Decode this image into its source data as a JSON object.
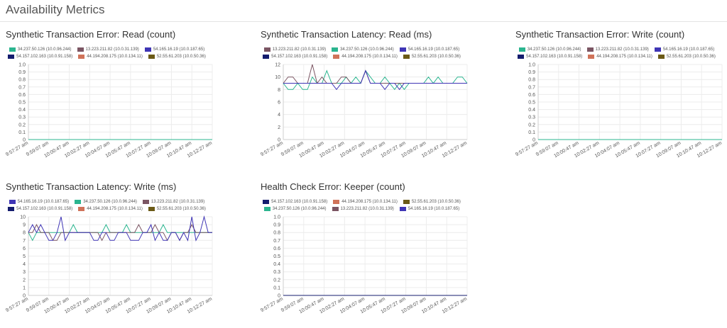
{
  "page": {
    "title": "Availability Metrics"
  },
  "colors": {
    "s1": "#2bb58f",
    "s2": "#7b5563",
    "s3": "#3f35b5",
    "s4": "#141c6e",
    "s5": "#d0735a",
    "s6": "#6b5a16"
  },
  "x_ticks": [
    "9:57:27 am",
    "9:59:07 am",
    "10:00:47 am",
    "10:02:27 am",
    "10:04:07 am",
    "10:05:47 am",
    "10:07:27 am",
    "10:09:07 am",
    "10:10:47 am",
    "10:12:27 am"
  ],
  "charts": [
    {
      "title": "Synthetic Transaction Error: Read (count)",
      "legend": [
        [
          {
            "label": "34.237.50.126 (10.0.96.244)",
            "color": "s1"
          },
          {
            "label": "13.223.211.82 (10.0.31.139)",
            "color": "s2"
          },
          {
            "label": "54.165.16.19 (10.0.187.65)",
            "color": "s3"
          }
        ],
        [
          {
            "label": "54.157.102.163 (10.0.91.158)",
            "color": "s4"
          },
          {
            "label": "44.194.208.175 (10.0.134.11)",
            "color": "s5"
          },
          {
            "label": "52.55.61.203 (10.0.50.36)",
            "color": "s6"
          }
        ]
      ],
      "y_ticks": [
        "1.0",
        "0.9",
        "0.8",
        "0.7",
        "0.6",
        "0.5",
        "0.4",
        "0.3",
        "0.2",
        "0.1",
        "0"
      ],
      "ylim": [
        0,
        1
      ],
      "series": [
        {
          "color": "s1",
          "values": [
            0,
            0,
            0,
            0,
            0,
            0,
            0,
            0,
            0,
            0,
            0,
            0,
            0,
            0,
            0,
            0,
            0,
            0,
            0,
            0,
            0,
            0,
            0,
            0,
            0,
            0,
            0,
            0,
            0,
            0,
            0,
            0,
            0,
            0,
            0,
            0,
            0,
            0,
            0,
            0,
            0,
            0,
            0,
            0,
            0,
            0
          ]
        }
      ]
    },
    {
      "title": "Synthetic Transaction Latency: Read (ms)",
      "legend": [
        [
          {
            "label": "13.223.211.82 (10.0.31.139)",
            "color": "s2"
          },
          {
            "label": "34.237.50.126 (10.0.96.244)",
            "color": "s1"
          },
          {
            "label": "54.165.16.19 (10.0.187.65)",
            "color": "s3"
          }
        ],
        [
          {
            "label": "54.157.102.163 (10.0.91.158)",
            "color": "s4"
          },
          {
            "label": "44.194.208.175 (10.0.134.11)",
            "color": "s5"
          },
          {
            "label": "52.55.61.203 (10.0.50.36)",
            "color": "s6"
          }
        ]
      ],
      "y_ticks": [
        "12",
        "10",
        "8",
        "6",
        "4",
        "2",
        "0"
      ],
      "ylim": [
        0,
        12
      ],
      "series": [
        {
          "color": "s1",
          "values": [
            9,
            8,
            8,
            9,
            8,
            8,
            10,
            9,
            9,
            11,
            9,
            9,
            9,
            10,
            9,
            10,
            9,
            11,
            10,
            9,
            9,
            10,
            9,
            8,
            9,
            8,
            9,
            9,
            9,
            9,
            10,
            9,
            10,
            9,
            9,
            9,
            10,
            10,
            9
          ]
        },
        {
          "color": "s2",
          "values": [
            9,
            10,
            10,
            9,
            9,
            9,
            12,
            9,
            10,
            9,
            9,
            9,
            10,
            10,
            9,
            9,
            9,
            11,
            9,
            9,
            9,
            9,
            9,
            9,
            9,
            9,
            9,
            9,
            9,
            9,
            9,
            9,
            9,
            9,
            9,
            9,
            9,
            9,
            9
          ]
        },
        {
          "color": "s3",
          "values": [
            9,
            9,
            9,
            9,
            9,
            9,
            9,
            9,
            9,
            9,
            9,
            8,
            9,
            9,
            9,
            9,
            9,
            11,
            9,
            9,
            9,
            8,
            9,
            9,
            8,
            9,
            9,
            9,
            9,
            9,
            9,
            9,
            9,
            9,
            9,
            9,
            9,
            9,
            9
          ]
        }
      ]
    },
    {
      "title": "Synthetic Transaction Error: Write (count)",
      "legend": [
        [
          {
            "label": "34.237.50.126 (10.0.96.244)",
            "color": "s1"
          },
          {
            "label": "13.223.211.82 (10.0.31.139)",
            "color": "s2"
          },
          {
            "label": "54.165.16.19 (10.0.187.65)",
            "color": "s3"
          }
        ],
        [
          {
            "label": "54.157.102.163 (10.0.91.158)",
            "color": "s4"
          },
          {
            "label": "44.194.208.175 (10.0.134.11)",
            "color": "s5"
          },
          {
            "label": "52.55.61.203 (10.0.50.36)",
            "color": "s6"
          }
        ]
      ],
      "y_ticks": [
        "1.0",
        "0.9",
        "0.8",
        "0.7",
        "0.6",
        "0.5",
        "0.4",
        "0.3",
        "0.2",
        "0.1",
        "0"
      ],
      "ylim": [
        0,
        1
      ],
      "series": [
        {
          "color": "s1",
          "values": [
            0,
            0,
            0,
            0,
            0,
            0,
            0,
            0,
            0,
            0,
            0,
            0,
            0,
            0,
            0,
            0,
            0,
            0,
            0,
            0,
            0,
            0,
            0,
            0,
            0,
            0,
            0,
            0,
            0,
            0,
            0,
            0,
            0,
            0,
            0,
            0,
            0,
            0,
            0,
            0,
            0,
            0,
            0,
            0,
            0,
            0
          ]
        }
      ]
    },
    {
      "title": "Synthetic Transaction Latency: Write (ms)",
      "legend": [
        [
          {
            "label": "54.165.16.19 (10.0.187.65)",
            "color": "s3"
          },
          {
            "label": "34.237.50.126 (10.0.96.244)",
            "color": "s1"
          },
          {
            "label": "13.223.211.82 (10.0.31.139)",
            "color": "s2"
          }
        ],
        [
          {
            "label": "54.157.102.163 (10.0.91.158)",
            "color": "s4"
          },
          {
            "label": "44.194.208.175 (10.0.134.11)",
            "color": "s5"
          },
          {
            "label": "52.55.61.203 (10.0.50.36)",
            "color": "s6"
          }
        ]
      ],
      "y_ticks": [
        "10",
        "9",
        "8",
        "7",
        "6",
        "5",
        "4",
        "3",
        "2",
        "1",
        "0"
      ],
      "ylim": [
        0,
        10
      ],
      "series": [
        {
          "color": "s1",
          "values": [
            8,
            7,
            8,
            8,
            8,
            8,
            8,
            8,
            8,
            8,
            8,
            9,
            8,
            8,
            8,
            8,
            8,
            8,
            8,
            9,
            8,
            8,
            8,
            8,
            9,
            8,
            8,
            8,
            8,
            8,
            8,
            8,
            8,
            9,
            8,
            8,
            8,
            8,
            8,
            8,
            8,
            8,
            8,
            8,
            8,
            8
          ]
        },
        {
          "color": "s2",
          "values": [
            8,
            8,
            9,
            8,
            8,
            8,
            7,
            7,
            8,
            8,
            8,
            8,
            8,
            8,
            8,
            8,
            8,
            8,
            7,
            8,
            8,
            8,
            8,
            8,
            8,
            8,
            8,
            9,
            8,
            8,
            8,
            9,
            8,
            8,
            7,
            8,
            8,
            7,
            8,
            8,
            9,
            8,
            8,
            8,
            8,
            8
          ]
        },
        {
          "color": "s3",
          "values": [
            8,
            9,
            8,
            9,
            8,
            7,
            7,
            8,
            10,
            7,
            8,
            8,
            8,
            8,
            8,
            8,
            7,
            7,
            8,
            8,
            7,
            7,
            8,
            8,
            8,
            7,
            7,
            7,
            8,
            8,
            9,
            7,
            8,
            7,
            7,
            8,
            8,
            7,
            8,
            7,
            10,
            7,
            8,
            10,
            8,
            8
          ]
        }
      ]
    },
    {
      "title": "Health Check Error: Keeper (count)",
      "legend": [
        [
          {
            "label": "54.157.102.163 (10.0.91.158)",
            "color": "s4"
          },
          {
            "label": "44.194.208.175 (10.0.134.11)",
            "color": "s5"
          },
          {
            "label": "52.55.61.203 (10.0.50.36)",
            "color": "s6"
          }
        ],
        [
          {
            "label": "34.237.50.126 (10.0.96.244)",
            "color": "s1"
          },
          {
            "label": "13.223.211.82 (10.0.31.139)",
            "color": "s2"
          },
          {
            "label": "54.165.16.19 (10.0.187.65)",
            "color": "s3"
          }
        ]
      ],
      "y_ticks": [
        "1.0",
        "0.9",
        "0.8",
        "0.7",
        "0.6",
        "0.5",
        "0.4",
        "0.3",
        "0.2",
        "0.1",
        "0"
      ],
      "ylim": [
        0,
        1
      ],
      "series": [
        {
          "color": "s4",
          "values": [
            0,
            0,
            0,
            0,
            0,
            0,
            0,
            0,
            0,
            0,
            0,
            0,
            0,
            0,
            0,
            0,
            0,
            0,
            0,
            0,
            0,
            0,
            0,
            0,
            0,
            0,
            0,
            0,
            0,
            0,
            0,
            0,
            0,
            0,
            0,
            0,
            0,
            0,
            0,
            0,
            0,
            0,
            0,
            0,
            0,
            0
          ]
        }
      ]
    }
  ]
}
